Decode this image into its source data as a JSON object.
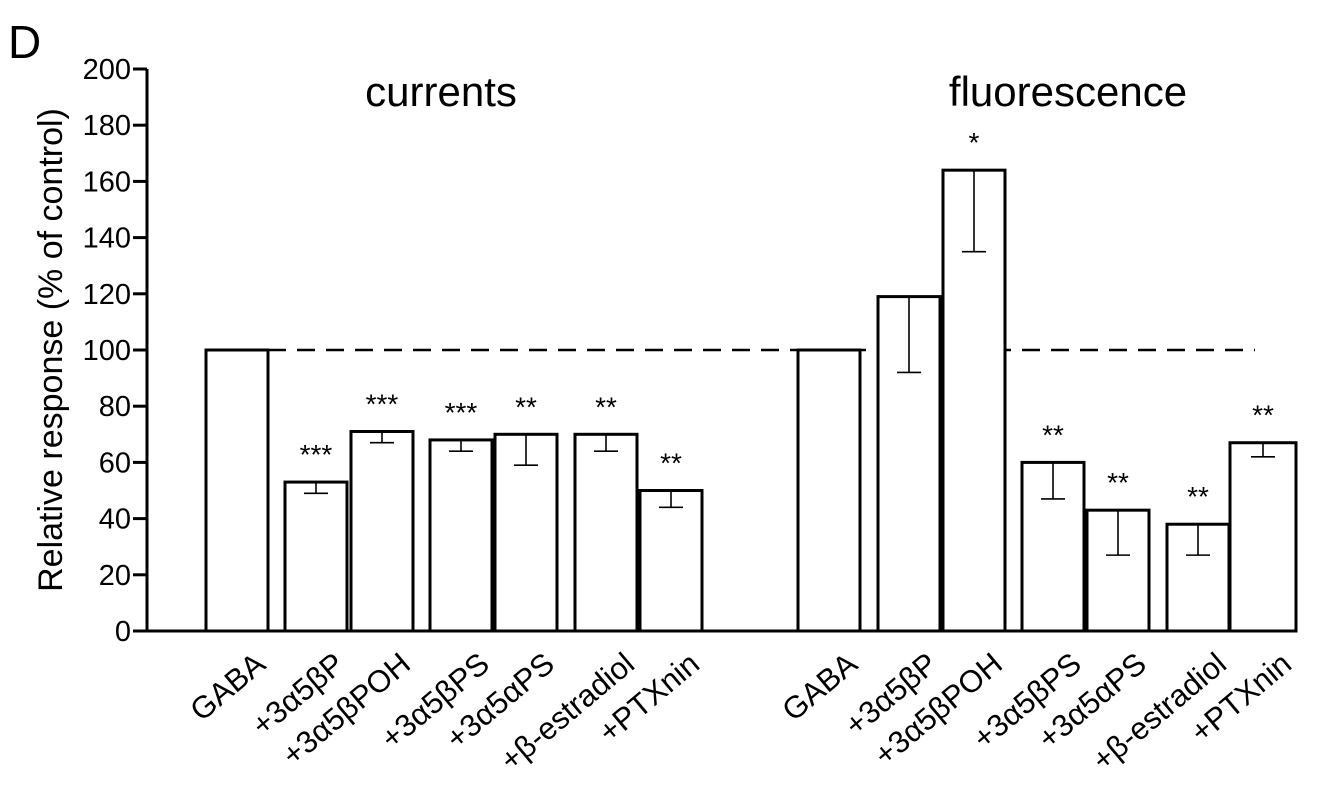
{
  "chart_data": {
    "type": "bar",
    "panel_label": "D",
    "ylabel": "Relative response (% of control)",
    "ylim": [
      0,
      200
    ],
    "yticks": [
      0,
      20,
      40,
      60,
      80,
      100,
      120,
      140,
      160,
      180,
      200
    ],
    "reference_line": 100,
    "grid": false,
    "groups": [
      {
        "title": "currents",
        "categories": [
          "GABA",
          "+3α5βP",
          "+3α5βPOH",
          "+3α5βPS",
          "+3α5αPS",
          "+β-estradiol",
          "+PTXnin"
        ],
        "values": [
          100,
          53,
          71,
          68,
          70,
          70,
          50
        ],
        "error_low": [
          null,
          49,
          67,
          64,
          59,
          64,
          44
        ],
        "significance": [
          "",
          "***",
          "***",
          "***",
          "**",
          "**",
          "**"
        ]
      },
      {
        "title": "fluorescence",
        "categories": [
          "GABA",
          "+3α5βP",
          "+3α5βPOH",
          "+3α5βPS",
          "+3α5αPS",
          "+β-estradiol",
          "+PTXnin"
        ],
        "values": [
          100,
          119,
          164,
          60,
          43,
          38,
          67
        ],
        "error_low": [
          null,
          92,
          135,
          47,
          27,
          27,
          62
        ],
        "significance": [
          "",
          "",
          "*",
          "**",
          "**",
          "**",
          "**"
        ]
      }
    ]
  }
}
